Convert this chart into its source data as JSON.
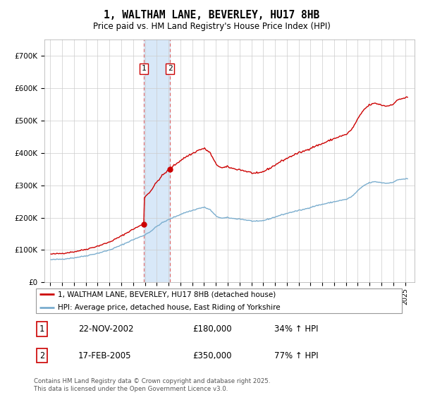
{
  "title": "1, WALTHAM LANE, BEVERLEY, HU17 8HB",
  "subtitle": "Price paid vs. HM Land Registry's House Price Index (HPI)",
  "legend_line1": "1, WALTHAM LANE, BEVERLEY, HU17 8HB (detached house)",
  "legend_line2": "HPI: Average price, detached house, East Riding of Yorkshire",
  "transaction1_date_label": "22-NOV-2002",
  "transaction1_price_label": "£180,000",
  "transaction1_hpi_label": "34% ↑ HPI",
  "transaction1_year": 2002.9,
  "transaction2_date_label": "17-FEB-2005",
  "transaction2_price_label": "£350,000",
  "transaction2_hpi_label": "77% ↑ HPI",
  "transaction2_year": 2005.13,
  "price1": 180000,
  "price2": 350000,
  "footer": "Contains HM Land Registry data © Crown copyright and database right 2025.\nThis data is licensed under the Open Government Licence v3.0.",
  "red_color": "#cc0000",
  "blue_color": "#7aadce",
  "shade_color": "#d8e8f8",
  "vline_color": "#dd6666",
  "background_color": "#ffffff",
  "ylim_max": 750000,
  "ylim_min": 0,
  "xmin": 1994.5,
  "xmax": 2025.8
}
